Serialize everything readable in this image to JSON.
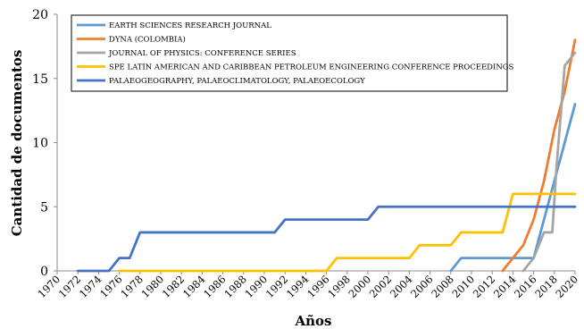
{
  "chart_data": {
    "type": "line",
    "xlabel": "Años",
    "ylabel": "Cantidad de documentos",
    "xlim": [
      1970,
      2020
    ],
    "ylim": [
      0,
      20
    ],
    "x_ticks": [
      1970,
      1972,
      1974,
      1976,
      1978,
      1980,
      1982,
      1984,
      1986,
      1988,
      1990,
      1992,
      1994,
      1996,
      1998,
      2000,
      2002,
      2004,
      2006,
      2008,
      2010,
      2012,
      2014,
      2016,
      2018,
      2020
    ],
    "y_ticks": [
      0,
      5,
      10,
      15,
      20
    ],
    "grid": false,
    "legend_position": "top-left",
    "series": [
      {
        "name": "EARTH SCIENCES RESEARCH JOURNAL",
        "color": "#5B9BD5",
        "points": [
          [
            2008,
            0
          ],
          [
            2009,
            1
          ],
          [
            2016,
            1
          ],
          [
            2018,
            7
          ],
          [
            2020,
            13
          ]
        ]
      },
      {
        "name": "DYNA (COLOMBIA)",
        "color": "#ED7D31",
        "points": [
          [
            2013,
            0
          ],
          [
            2015,
            2
          ],
          [
            2016,
            4
          ],
          [
            2017,
            7
          ],
          [
            2018,
            11
          ],
          [
            2019,
            14
          ],
          [
            2020,
            18
          ]
        ]
      },
      {
        "name": "JOURNAL OF PHYSICS: CONFERENCE SERIES",
        "color": "#A5A5A5",
        "points": [
          [
            2015,
            0
          ],
          [
            2016,
            1
          ],
          [
            2017,
            3
          ],
          [
            2017.8,
            3
          ],
          [
            2018.2,
            8
          ],
          [
            2019,
            16
          ],
          [
            2020,
            17
          ]
        ]
      },
      {
        "name": "SPE LATIN AMERICAN AND CARIBBEAN PETROLEUM ENGINEERING CONFERENCE PROCEEDINGS",
        "color": "#FFC000",
        "points": [
          [
            1976,
            0
          ],
          [
            1996,
            0
          ],
          [
            1997,
            1
          ],
          [
            2004,
            1
          ],
          [
            2005,
            2
          ],
          [
            2008,
            2
          ],
          [
            2009,
            3
          ],
          [
            2013,
            3
          ],
          [
            2014,
            6
          ],
          [
            2020,
            6
          ]
        ]
      },
      {
        "name": "PALAEOGEOGRAPHY, PALAEOCLIMATOLOGY, PALAEOECOLOGY",
        "color": "#4472C4",
        "points": [
          [
            1972,
            0
          ],
          [
            1975,
            0
          ],
          [
            1976,
            1
          ],
          [
            1977,
            1
          ],
          [
            1978,
            3
          ],
          [
            1991,
            3
          ],
          [
            1992,
            4
          ],
          [
            2000,
            4
          ],
          [
            2001,
            5
          ],
          [
            2020,
            5
          ]
        ]
      }
    ]
  }
}
